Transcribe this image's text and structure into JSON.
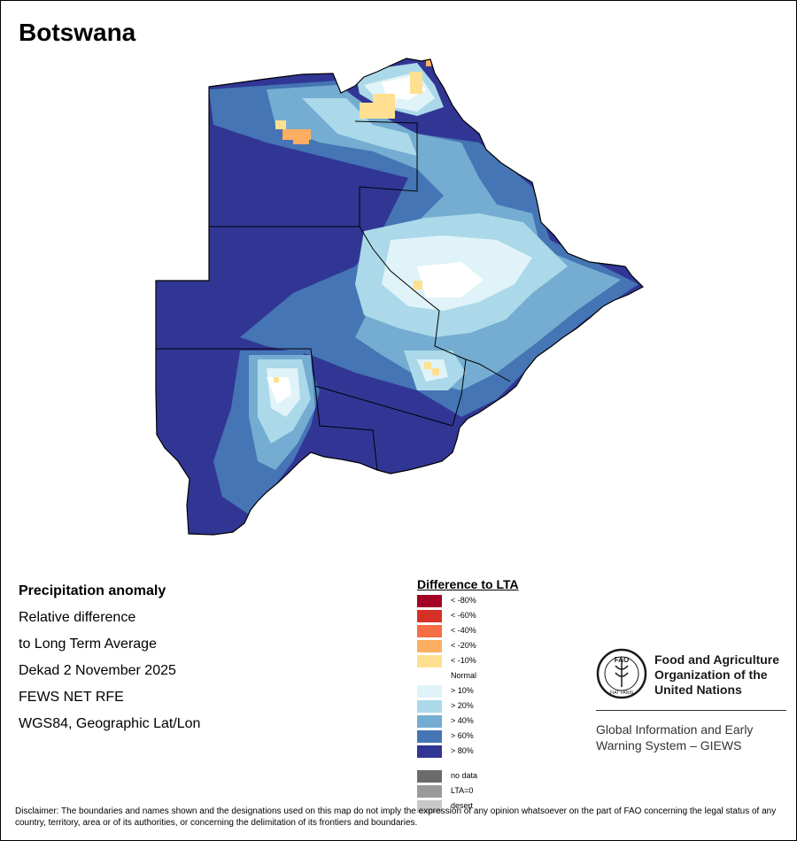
{
  "map_title": "Botswana",
  "info_lines": [
    "Precipitation anomaly",
    "Relative difference",
    "to Long Term Average",
    "Dekad 2 November 2025",
    "FEWS NET RFE",
    "WGS84, Geographic Lat/Lon"
  ],
  "legend": {
    "title": "Difference to LTA",
    "items": [
      {
        "label": "< -80%",
        "color": "#a50026"
      },
      {
        "label": "< -60%",
        "color": "#d73027"
      },
      {
        "label": "< -40%",
        "color": "#f46d43"
      },
      {
        "label": "< -20%",
        "color": "#fdae61"
      },
      {
        "label": "< -10%",
        "color": "#fee090"
      },
      {
        "label": "Normal",
        "color": "#ffffff"
      },
      {
        "label": "> 10%",
        "color": "#e0f3f8"
      },
      {
        "label": "> 20%",
        "color": "#abd9e9"
      },
      {
        "label": "> 40%",
        "color": "#74add1"
      },
      {
        "label": "> 60%",
        "color": "#4575b4"
      },
      {
        "label": "> 80%",
        "color": "#313695"
      },
      {
        "label": "no data",
        "color": "#6b6b6b"
      },
      {
        "label": "LTA=0",
        "color": "#9a9a9a"
      },
      {
        "label": "desert",
        "color": "#c8c8c8"
      }
    ]
  },
  "org": {
    "logo_text": "FAO",
    "logo_ring_text": "FIAT PANIS",
    "name": "Food and Agriculture Organization of the United Nations",
    "system": "Global Information and Early Warning System – GIEWS"
  },
  "disclaimer": "Disclaimer: The boundaries and names shown and the designations used on this map do not imply the expression of any opinion whatsoever on the part of FAO concerning the legal status of any country, territory, area or of its authorities, or concerning the delimitation of its frontiers and boundaries."
}
